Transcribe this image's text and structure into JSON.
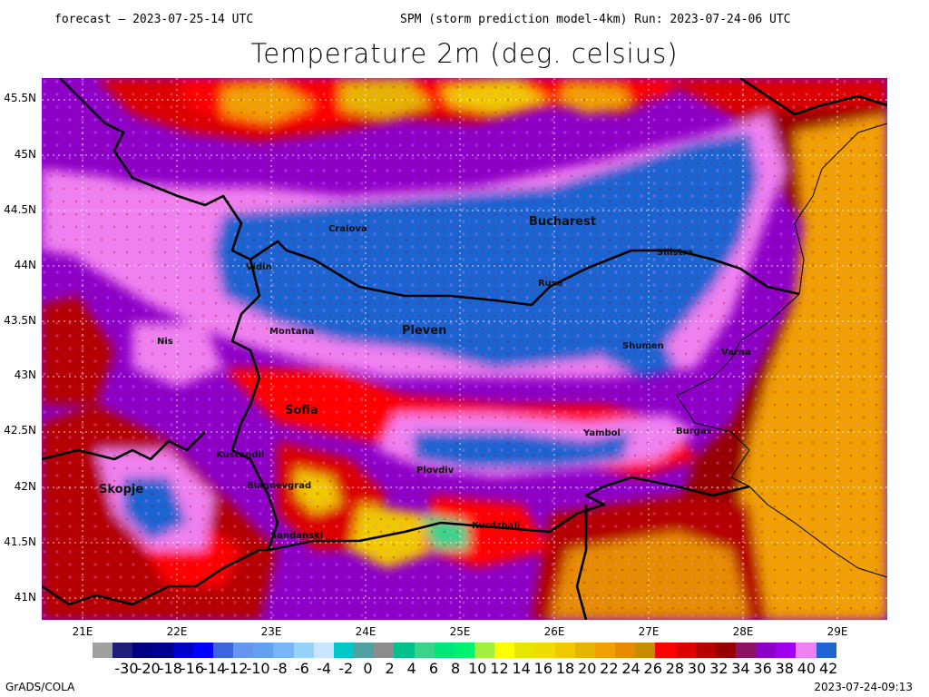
{
  "header": {
    "forecast": "forecast – 2023-07-25-14 UTC",
    "model": "SPM (storm prediction model-4km) Run: 2023-07-24-06 UTC"
  },
  "title": "Temperature 2m (deg. celsius)",
  "lat_labels": [
    "45.5N",
    "45N",
    "44.5N",
    "44N",
    "43.5N",
    "43N",
    "42.5N",
    "42N",
    "41.5N",
    "41N"
  ],
  "lon_labels": [
    "21E",
    "22E",
    "23E",
    "24E",
    "25E",
    "26E",
    "27E",
    "28E",
    "29E"
  ],
  "cities": [
    {
      "name": "Craiova"
    },
    {
      "name": "Bucharest"
    },
    {
      "name": "Vidin"
    },
    {
      "name": "Silistra"
    },
    {
      "name": "Ruse"
    },
    {
      "name": "Montana"
    },
    {
      "name": "Pleven"
    },
    {
      "name": "Nis"
    },
    {
      "name": "Shumen"
    },
    {
      "name": "Varna"
    },
    {
      "name": "Sofia"
    },
    {
      "name": "Yambol"
    },
    {
      "name": "Burgas"
    },
    {
      "name": "Kustendil"
    },
    {
      "name": "Skopje"
    },
    {
      "name": "Plovdiv"
    },
    {
      "name": "Blagoevgrad"
    },
    {
      "name": "Kurdzhali"
    },
    {
      "name": "Sandanski"
    }
  ],
  "legend": {
    "colors": [
      "#a0a0a0",
      "#1e1e78",
      "#000080",
      "#00008c",
      "#0000c8",
      "#0000ff",
      "#3c64dc",
      "#6496f0",
      "#64a0f0",
      "#78b4f8",
      "#96d2fa",
      "#c8e6ff",
      "#00c8c8",
      "#50a0a0",
      "#8c8c8c",
      "#00c08c",
      "#3cd28c",
      "#00e678",
      "#00f070",
      "#a0f03c",
      "#ffff00",
      "#e6e600",
      "#f0dc00",
      "#f0c800",
      "#e6b400",
      "#f0a000",
      "#e68c00",
      "#c88c00",
      "#ff0000",
      "#dc0000",
      "#b40000",
      "#960000",
      "#8c1464",
      "#8c00c8",
      "#a000f0",
      "#f080f0",
      "#1e64d2"
    ],
    "labels": [
      "-30",
      "-20",
      "-18",
      "-16",
      "-14",
      "-12",
      "-10",
      "-8",
      "-6",
      "-4",
      "-2",
      "0",
      "2",
      "4",
      "6",
      "8",
      "10",
      "12",
      "14",
      "16",
      "18",
      "20",
      "22",
      "24",
      "26",
      "28",
      "30",
      "32",
      "34",
      "36",
      "38",
      "40",
      "42"
    ]
  },
  "footer": {
    "left": "GrADS/COLA",
    "right": "2023-07-24-09:13"
  }
}
